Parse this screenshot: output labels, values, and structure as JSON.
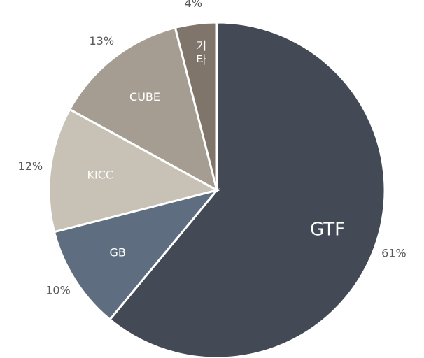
{
  "chart_data": {
    "type": "pie",
    "categories": [
      "GTF",
      "GB",
      "KICC",
      "CUBE",
      "기타"
    ],
    "values": [
      61,
      10,
      12,
      13,
      4
    ],
    "value_labels": [
      "61%",
      "10%",
      "12%",
      "13%",
      "4%"
    ],
    "colors": [
      "#434a56",
      "#5e6e80",
      "#c8c2b6",
      "#a59d91",
      "#7f756b"
    ]
  }
}
